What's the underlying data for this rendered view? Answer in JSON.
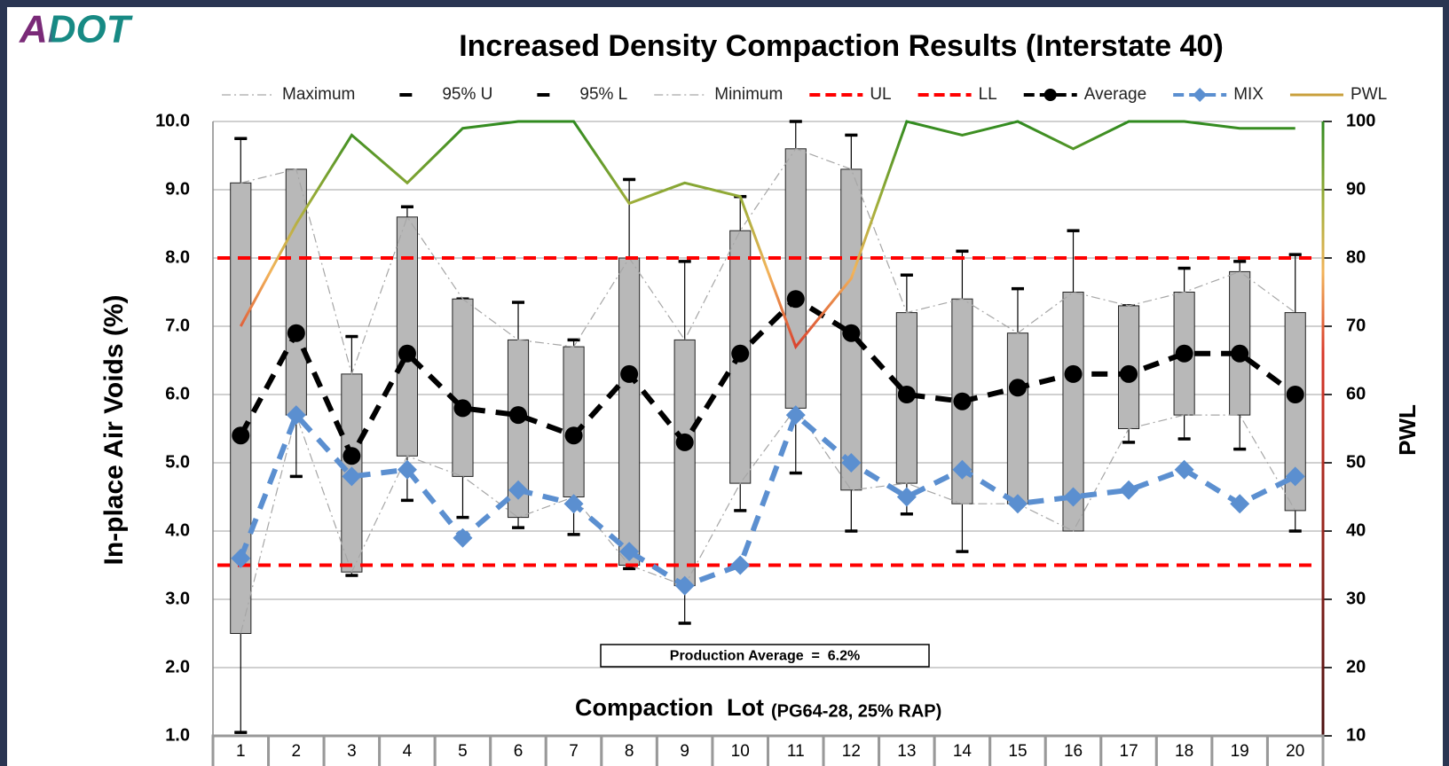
{
  "logo": "ADOT",
  "chart_data": {
    "type": "box",
    "title": "Increased Density Compaction Results (Interstate 40)",
    "y_label": "In-place Air Voids (%)",
    "y2_label": "PWL",
    "x_label": "Compaction  Lot",
    "x_label_note": "(PG64-28, 25% RAP)",
    "annotation": "Production Average  =  6.2%",
    "categories": [
      "1",
      "2",
      "3",
      "4",
      "5",
      "6",
      "7",
      "8",
      "9",
      "10",
      "11",
      "12",
      "13",
      "14",
      "15",
      "16",
      "17",
      "18",
      "19",
      "20"
    ],
    "ylim": [
      1,
      10
    ],
    "yticks": [
      {
        "value": 1,
        "label": "1.0"
      },
      {
        "value": 2,
        "label": "2.0"
      },
      {
        "value": 3,
        "label": "3.0"
      },
      {
        "value": 4,
        "label": "4.0"
      },
      {
        "value": 5,
        "label": "5.0"
      },
      {
        "value": 6,
        "label": "6.0"
      },
      {
        "value": 7,
        "label": "7.0"
      },
      {
        "value": 8,
        "label": "8.0"
      },
      {
        "value": 9,
        "label": "9.0"
      },
      {
        "value": 10,
        "label": "10.0"
      }
    ],
    "y2lim": [
      10,
      100
    ],
    "y2ticks": [
      10,
      20,
      30,
      40,
      50,
      60,
      70,
      80,
      90,
      100
    ],
    "grid": true,
    "legend": "top",
    "series": [
      {
        "name": "Maximum",
        "role": "max",
        "color": "#a6a6a6",
        "style": "dashdot",
        "values": [
          9.1,
          9.3,
          6.3,
          8.6,
          7.4,
          6.8,
          6.7,
          8.0,
          6.8,
          8.4,
          9.6,
          9.3,
          7.2,
          7.4,
          6.9,
          7.5,
          7.3,
          7.5,
          7.8,
          7.2
        ]
      },
      {
        "name": "95% U",
        "role": "upper",
        "color": "#000000",
        "style": "cap",
        "values": [
          9.75,
          9.05,
          6.85,
          8.75,
          7.4,
          7.35,
          6.8,
          9.15,
          7.95,
          8.9,
          10.0,
          9.8,
          7.75,
          8.1,
          7.55,
          8.4,
          7.3,
          7.85,
          7.95,
          8.05
        ]
      },
      {
        "name": "95% L",
        "role": "lower",
        "color": "#000000",
        "style": "cap",
        "values": [
          1.05,
          4.8,
          3.35,
          4.45,
          4.2,
          4.05,
          3.95,
          3.45,
          2.65,
          4.3,
          4.85,
          4.0,
          4.25,
          3.7,
          4.65,
          4.15,
          5.3,
          5.35,
          5.2,
          4.0
        ]
      },
      {
        "name": "Minimum",
        "role": "min",
        "color": "#a6a6a6",
        "style": "dashdot",
        "values": [
          2.5,
          5.7,
          3.4,
          5.1,
          4.8,
          4.2,
          4.5,
          3.5,
          3.2,
          4.7,
          5.8,
          4.6,
          4.7,
          4.4,
          4.4,
          4.0,
          5.5,
          5.7,
          5.7,
          4.3
        ]
      },
      {
        "name": "UL",
        "role": "line",
        "color": "#ff0000",
        "style": "dash",
        "values": [
          8,
          8,
          8,
          8,
          8,
          8,
          8,
          8,
          8,
          8,
          8,
          8,
          8,
          8,
          8,
          8,
          8,
          8,
          8,
          8
        ]
      },
      {
        "name": "LL",
        "role": "line",
        "color": "#ff0000",
        "style": "dash",
        "values": [
          3.5,
          3.5,
          3.5,
          3.5,
          3.5,
          3.5,
          3.5,
          3.5,
          3.5,
          3.5,
          3.5,
          3.5,
          3.5,
          3.5,
          3.5,
          3.5,
          3.5,
          3.5,
          3.5,
          3.5
        ]
      },
      {
        "name": "Average",
        "role": "line",
        "color": "#000000",
        "style": "thickdash",
        "marker": "circle",
        "values": [
          5.4,
          6.9,
          5.1,
          6.6,
          5.8,
          5.7,
          5.4,
          6.3,
          5.3,
          6.6,
          7.4,
          6.9,
          6.0,
          5.9,
          6.1,
          6.3,
          6.3,
          6.6,
          6.6,
          6.0
        ]
      },
      {
        "name": "MIX",
        "role": "line",
        "color": "#5b8fd0",
        "style": "thickdash",
        "marker": "diamond",
        "values": [
          3.6,
          5.7,
          4.8,
          4.9,
          3.9,
          4.6,
          4.4,
          3.7,
          3.2,
          3.5,
          5.7,
          5.0,
          4.5,
          4.9,
          4.4,
          4.5,
          4.6,
          4.9,
          4.4,
          4.8
        ]
      },
      {
        "name": "PWL",
        "role": "line",
        "axis": "y2",
        "color": "#c9a03c",
        "style": "solid",
        "values": [
          70,
          85,
          98,
          91,
          99,
          100,
          100,
          88,
          91,
          89,
          67,
          77,
          100,
          98,
          100,
          96,
          100,
          100,
          99,
          99
        ],
        "color_stops": [
          {
            "value": 100,
            "color": "#2f8a1f"
          },
          {
            "value": 88,
            "color": "#9fae3a"
          },
          {
            "value": 78,
            "color": "#f2b45a"
          },
          {
            "value": 66,
            "color": "#d8382a"
          },
          {
            "value": 10,
            "color": "#4a1010"
          }
        ]
      }
    ]
  }
}
